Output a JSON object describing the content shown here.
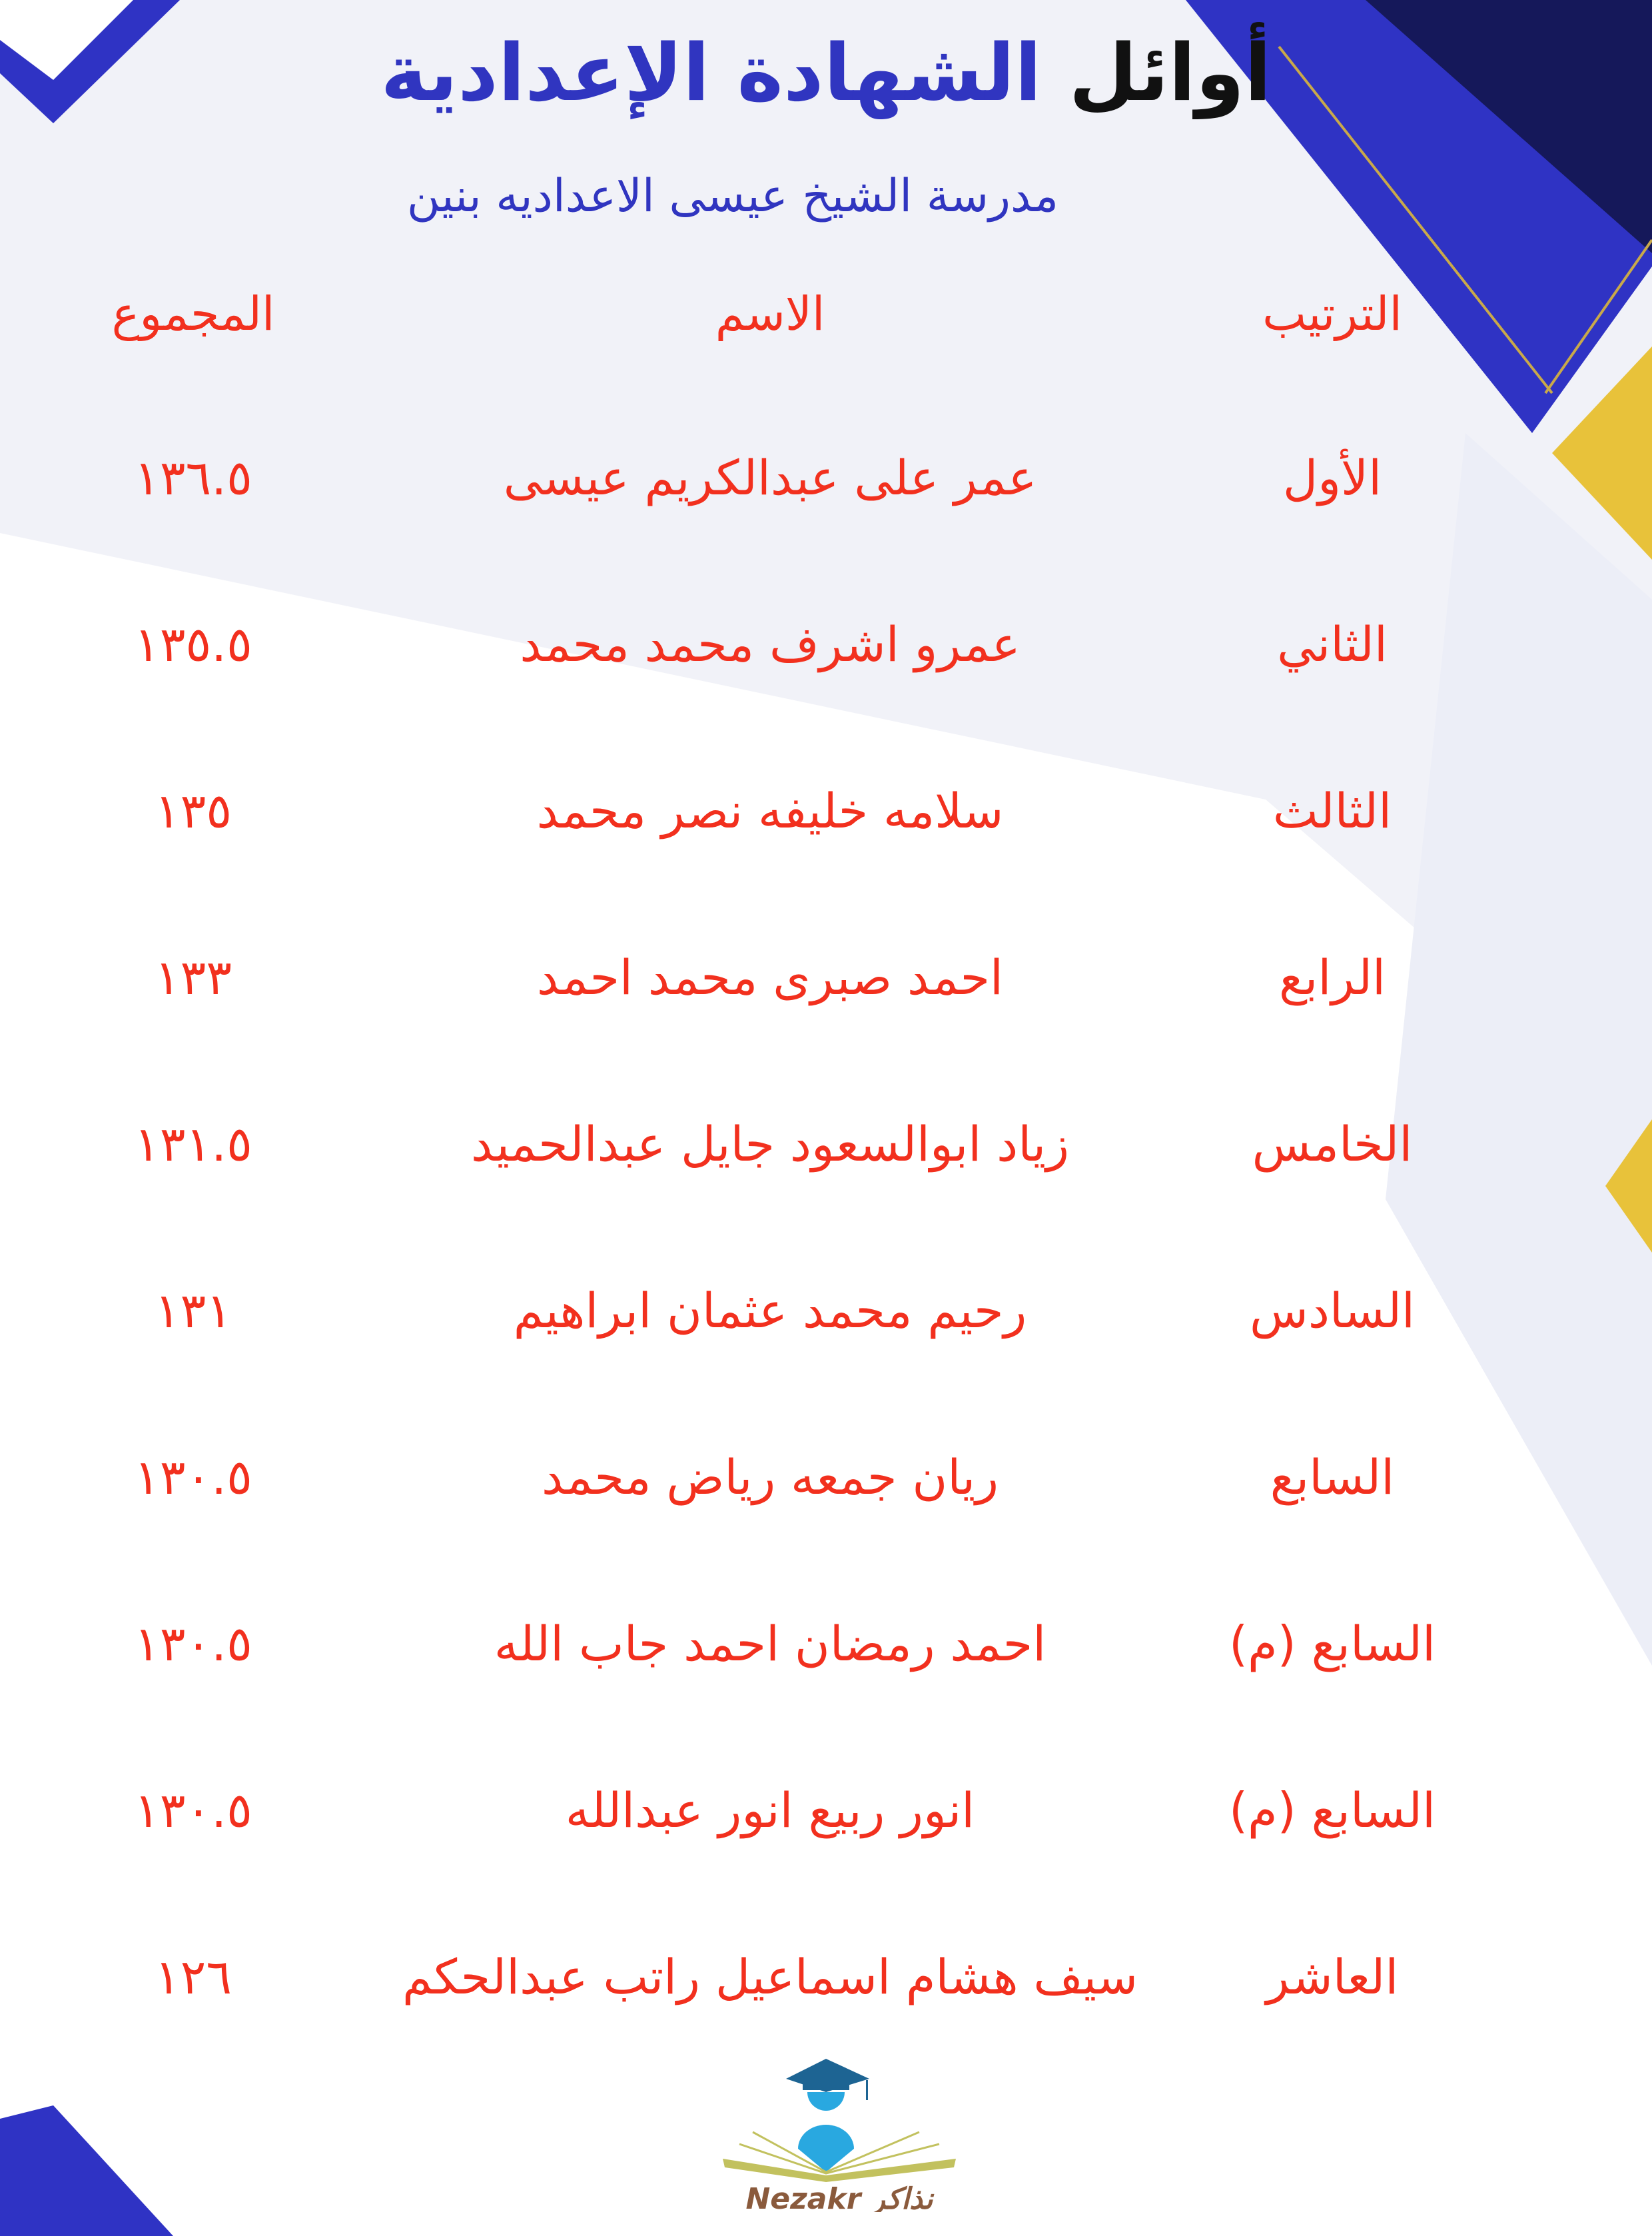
{
  "header": {
    "title_part1": "أوائل",
    "title_part2": "الشهادة الإعدادية",
    "school": "مدرسة الشيخ عيسى الاعداديه بنين"
  },
  "table": {
    "columns": {
      "rank": "الترتيب",
      "name": "الاسم",
      "total": "المجموع"
    },
    "rows": [
      {
        "rank": "الأول",
        "name": "عمر على عبدالكريم عيسى",
        "total": "١٣٦.٥"
      },
      {
        "rank": "الثاني",
        "name": "عمرو اشرف محمد محمد",
        "total": "١٣٥.٥"
      },
      {
        "rank": "الثالث",
        "name": "سلامه خليفه نصر محمد",
        "total": "١٣٥"
      },
      {
        "rank": "الرابع",
        "name": "احمد صبرى محمد احمد",
        "total": "١٣٣"
      },
      {
        "rank": "الخامس",
        "name": "زياد ابوالسعود جايل عبدالحميد",
        "total": "١٣١.٥"
      },
      {
        "rank": "السادس",
        "name": "رحيم محمد عثمان ابراهيم",
        "total": "١٣١"
      },
      {
        "rank": "السابع",
        "name": "ريان جمعه رياض محمد",
        "total": "١٣٠.٥"
      },
      {
        "rank": "السابع (م)",
        "name": "احمد رمضان احمد جاب الله",
        "total": "١٣٠.٥"
      },
      {
        "rank": "السابع (م)",
        "name": "انور ربيع انور عبدالله",
        "total": "١٣٠.٥"
      },
      {
        "rank": "العاشر",
        "name": "سيف هشام اسماعيل راتب عبدالحكم",
        "total": "١٢٦"
      }
    ]
  },
  "logo": {
    "text_en": "Nezakr",
    "text_ar": "نذاكر"
  },
  "colors": {
    "title_blue": "#3035c0",
    "text_red": "#f2301e",
    "accent_gold": "#e8c23a"
  }
}
